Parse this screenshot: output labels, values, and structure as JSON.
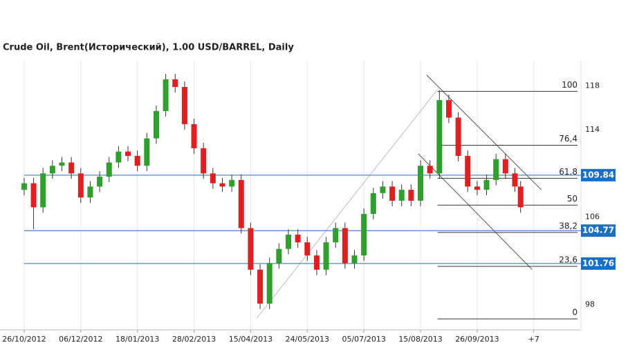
{
  "chart_data": {
    "type": "candlestick",
    "title": "Crude Oil, Brent(Исторический), 1.00 USD/BARREL, Daily",
    "x": [
      0,
      5,
      10,
      15,
      20,
      25,
      30,
      35,
      40,
      45,
      50,
      55,
      60,
      65,
      70,
      75,
      80,
      85,
      90,
      95,
      100,
      105,
      110,
      115,
      120,
      125,
      130,
      135,
      140,
      145,
      150,
      155,
      160,
      165,
      170,
      175,
      180,
      185,
      190,
      195,
      200,
      205,
      210,
      215,
      220,
      225,
      230,
      235,
      240,
      245,
      250,
      255,
      260,
      263
    ],
    "open": [
      108.5,
      109.1,
      106.9,
      110,
      110.7,
      111,
      110,
      107.8,
      108.8,
      109.7,
      111,
      112,
      111.6,
      110.7,
      113.2,
      115.7,
      118.6,
      117.9,
      114.5,
      112.3,
      110,
      109.1,
      108.8,
      109.4,
      105,
      101.2,
      98.1,
      101.8,
      103.1,
      104.4,
      103.7,
      102.5,
      101.2,
      103.7,
      105,
      101.8,
      102.5,
      106.3,
      108.2,
      108.8,
      107.5,
      108.5,
      107.5,
      110.7,
      110,
      116.7,
      115.1,
      111.6,
      108.8,
      108.5,
      109.4,
      111.3,
      110,
      108.8
    ],
    "high": [
      109.6,
      109.6,
      110.5,
      111.2,
      111.5,
      111.5,
      110.5,
      109.3,
      110.2,
      111.5,
      112.5,
      112.5,
      112.1,
      113.7,
      116.2,
      119.1,
      119.1,
      118.4,
      115.0,
      112.8,
      110.5,
      109.6,
      109.9,
      109.9,
      105.5,
      101.7,
      102.3,
      103.6,
      104.9,
      104.9,
      104.2,
      103.0,
      104.2,
      105.5,
      105.5,
      103.0,
      106.8,
      108.7,
      109.3,
      109.3,
      109.0,
      109.0,
      111.2,
      111.2,
      117.6,
      117.2,
      115.6,
      112.1,
      109.3,
      109.9,
      111.8,
      111.8,
      110.5,
      109.3
    ],
    "low": [
      108.0,
      104.9,
      106.4,
      109.5,
      110.2,
      109.5,
      107.3,
      107.3,
      108.3,
      109.2,
      110.5,
      111.1,
      110.2,
      110.2,
      112.7,
      115.2,
      117.4,
      114.0,
      111.8,
      109.5,
      108.6,
      108.3,
      108.3,
      104.5,
      100.7,
      97.6,
      97.6,
      101.3,
      102.6,
      103.2,
      102.0,
      100.7,
      100.7,
      103.2,
      101.3,
      101.3,
      102.0,
      105.8,
      107.7,
      107.0,
      107.0,
      107.0,
      107.0,
      109.5,
      109.5,
      114.6,
      111.1,
      108.3,
      108.0,
      108.0,
      108.9,
      109.5,
      108.3,
      106.4
    ],
    "close": [
      109.1,
      106.9,
      110,
      110.7,
      111,
      110,
      107.8,
      108.8,
      109.7,
      111,
      112,
      111.6,
      110.7,
      113.2,
      115.7,
      118.6,
      117.9,
      114.5,
      112.3,
      110,
      109.1,
      108.8,
      109.4,
      105,
      101.2,
      98.1,
      101.8,
      103.1,
      104.4,
      103.7,
      102.5,
      101.2,
      103.7,
      105,
      101.8,
      102.5,
      106.3,
      108.2,
      108.8,
      107.5,
      108.5,
      107.5,
      110.7,
      110,
      116.7,
      115.1,
      111.6,
      108.8,
      108.5,
      109.4,
      111.3,
      110,
      108.8,
      106.9
    ],
    "up_color": "#2fa02f",
    "down_color": "#e02020",
    "xlim": [
      -12.8,
      295
    ],
    "ylim": [
      95.7,
      120.3
    ],
    "xticks": [
      {
        "value": 0,
        "label": "26/10/2012"
      },
      {
        "value": 30,
        "label": "06/12/2012"
      },
      {
        "value": 60,
        "label": "18/01/2013"
      },
      {
        "value": 90,
        "label": "28/02/2013"
      },
      {
        "value": 120,
        "label": "15/04/2013"
      },
      {
        "value": 150,
        "label": "24/05/2013"
      },
      {
        "value": 180,
        "label": "05/07/2013"
      },
      {
        "value": 210,
        "label": "15/08/2013"
      },
      {
        "value": 240,
        "label": "26/09/2013"
      },
      {
        "value": 270,
        "label": "+7"
      }
    ],
    "yticks": [
      98,
      106,
      114,
      118
    ],
    "price_lines": [
      109.84,
      104.77,
      101.76
    ],
    "price_line_color": "#1a6fc4",
    "fib_start": 219,
    "fib_levels": [
      {
        "label": "100",
        "price": 117.5
      },
      {
        "label": "76,4",
        "price": 112.57
      },
      {
        "label": "61,8",
        "price": 109.55
      },
      {
        "label": "50",
        "price": 107.1
      },
      {
        "label": "38,2",
        "price": 104.6
      },
      {
        "label": "23,6",
        "price": 101.5
      },
      {
        "label": "0",
        "price": 96.7
      }
    ],
    "trendlines": [
      [
        123.4,
        96.8,
        218.7,
        117.6
      ],
      [
        213.2,
        119.0,
        274,
        108.5
      ],
      [
        208.8,
        111.8,
        269.2,
        101.2
      ]
    ],
    "grid": true
  }
}
